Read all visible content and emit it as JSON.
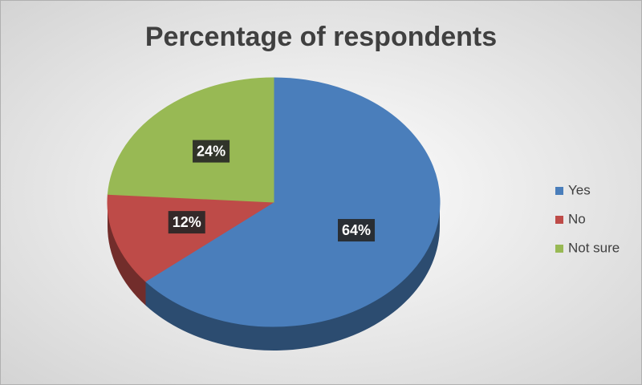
{
  "chart_data": {
    "type": "pie",
    "title": "Percentage of respondents",
    "categories": [
      "Yes",
      "No",
      "Not sure"
    ],
    "values": [
      64,
      12,
      24
    ],
    "value_labels": [
      "64%",
      "12%",
      "24%"
    ],
    "colors": [
      "#4a7ebb",
      "#be4b48",
      "#98b954"
    ],
    "legend": "right"
  }
}
